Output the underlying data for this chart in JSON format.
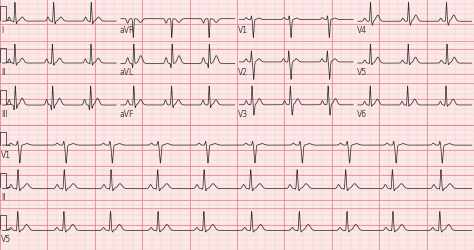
{
  "bg_color": "#fce8e8",
  "grid_minor_color": "#f2c4c4",
  "grid_major_color": "#e08080",
  "line_color": "#333333",
  "line_width": 0.55,
  "fig_width": 4.74,
  "fig_height": 2.51,
  "dpi": 100,
  "row_labels": [
    "I",
    "II",
    "III",
    "V1",
    "II",
    "V5"
  ],
  "col_labels_row1": [
    "aVR",
    "V1",
    "V4"
  ],
  "col_labels_row2": [
    "aVL",
    "V2",
    "V5"
  ],
  "col_labels_row3": [
    "aVF",
    "V3",
    "V6"
  ],
  "label_fontsize": 5.5
}
